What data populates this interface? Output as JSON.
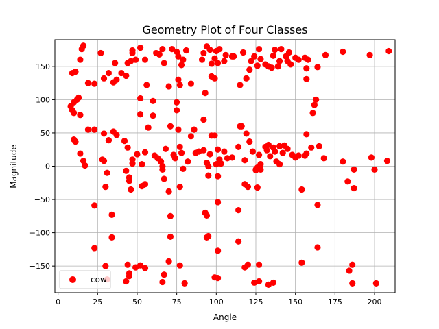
{
  "chart_data": {
    "type": "scatter",
    "title": "Geometry Plot of Four Classes",
    "xlabel": "Angle",
    "ylabel": "Magnitude",
    "xlim": [
      -2,
      213
    ],
    "ylim": [
      -190,
      190
    ],
    "xticks": [
      0,
      25,
      50,
      75,
      100,
      125,
      150,
      175,
      200
    ],
    "yticks": [
      -150,
      -100,
      -50,
      0,
      50,
      100,
      150
    ],
    "grid": true,
    "legend_position": "lower-left",
    "series": [
      {
        "name": "cow",
        "color": "#ff0000",
        "points": [
          [
            9,
            84
          ],
          [
            10,
            80
          ],
          [
            11,
            142
          ],
          [
            9,
            140
          ],
          [
            8,
            90
          ],
          [
            10,
            96
          ],
          [
            12,
            100
          ],
          [
            13,
            103
          ],
          [
            14,
            160
          ],
          [
            15,
            176
          ],
          [
            16,
            181
          ],
          [
            19,
            125
          ],
          [
            23,
            124
          ],
          [
            27,
            170
          ],
          [
            28,
            10
          ],
          [
            29,
            8
          ],
          [
            16,
            8
          ],
          [
            17,
            1
          ],
          [
            14,
            77
          ],
          [
            19,
            55
          ],
          [
            23,
            55
          ],
          [
            10,
            40
          ],
          [
            11,
            37
          ],
          [
            14,
            19
          ],
          [
            29,
            132
          ],
          [
            32,
            140
          ],
          [
            35,
            126
          ],
          [
            37,
            130
          ],
          [
            36,
            155
          ],
          [
            40,
            140
          ],
          [
            43,
            136
          ],
          [
            44,
            155
          ],
          [
            46,
            158
          ],
          [
            47,
            170
          ],
          [
            47,
            174
          ],
          [
            49,
            160
          ],
          [
            55,
            160
          ],
          [
            56,
            122
          ],
          [
            52,
            178
          ],
          [
            29,
            49
          ],
          [
            32,
            39
          ],
          [
            35,
            52
          ],
          [
            37,
            47
          ],
          [
            42,
            38
          ],
          [
            44,
            28
          ],
          [
            43,
            -7
          ],
          [
            45,
            -17
          ],
          [
            45,
            -22
          ],
          [
            46,
            -35
          ],
          [
            47,
            10
          ],
          [
            47,
            4
          ],
          [
            50,
            18
          ],
          [
            53,
            3
          ],
          [
            55,
            21
          ],
          [
            57,
            58
          ],
          [
            60,
            76
          ],
          [
            60,
            98
          ],
          [
            52,
            102
          ],
          [
            52,
            78
          ],
          [
            30,
            -31
          ],
          [
            31,
            -10
          ],
          [
            23,
            -59
          ],
          [
            23,
            -123
          ],
          [
            30,
            -150
          ],
          [
            31,
            -170
          ],
          [
            34,
            -73
          ],
          [
            34,
            -107
          ],
          [
            43,
            -173
          ],
          [
            44,
            -148
          ],
          [
            45,
            -161
          ],
          [
            45,
            -165
          ],
          [
            49,
            -152
          ],
          [
            52,
            -149
          ],
          [
            55,
            -153
          ],
          [
            53,
            -30
          ],
          [
            55,
            -27
          ],
          [
            62,
            170
          ],
          [
            64,
            168
          ],
          [
            66,
            176
          ],
          [
            67,
            155
          ],
          [
            70,
            120
          ],
          [
            72,
            176
          ],
          [
            75,
            172
          ],
          [
            76,
            165
          ],
          [
            76,
            130
          ],
          [
            77,
            122
          ],
          [
            78,
            152
          ],
          [
            79,
            160
          ],
          [
            81,
            174
          ],
          [
            84,
            124
          ],
          [
            79,
            -4
          ],
          [
            61,
            16
          ],
          [
            63,
            12
          ],
          [
            65,
            7
          ],
          [
            66,
            0
          ],
          [
            66,
            -5
          ],
          [
            67,
            -19
          ],
          [
            68,
            26
          ],
          [
            71,
            60
          ],
          [
            73,
            17
          ],
          [
            74,
            12
          ],
          [
            75,
            84
          ],
          [
            75,
            96
          ],
          [
            76,
            55
          ],
          [
            77,
            29
          ],
          [
            77,
            -31
          ],
          [
            78,
            20
          ],
          [
            82,
            7
          ],
          [
            84,
            45
          ],
          [
            86,
            55
          ],
          [
            87,
            20
          ],
          [
            89,
            22
          ],
          [
            70,
            -38
          ],
          [
            71,
            -75
          ],
          [
            71,
            -106
          ],
          [
            70,
            -143
          ],
          [
            67,
            -163
          ],
          [
            66,
            -174
          ],
          [
            77,
            -149
          ],
          [
            80,
            -176
          ],
          [
            91,
            160
          ],
          [
            92,
            170
          ],
          [
            94,
            180
          ],
          [
            96,
            175
          ],
          [
            97,
            154
          ],
          [
            97,
            135
          ],
          [
            99,
            132
          ],
          [
            99,
            162
          ],
          [
            100,
            173
          ],
          [
            101,
            155
          ],
          [
            102,
            176
          ],
          [
            105,
            158
          ],
          [
            106,
            167
          ],
          [
            110,
            165
          ],
          [
            111,
            165
          ],
          [
            115,
            122
          ],
          [
            117,
            171
          ],
          [
            119,
            132
          ],
          [
            121,
            145
          ],
          [
            122,
            158
          ],
          [
            124,
            165
          ],
          [
            126,
            151
          ],
          [
            127,
            176
          ],
          [
            128,
            161
          ],
          [
            92,
            70
          ],
          [
            92,
            24
          ],
          [
            93,
            110
          ],
          [
            94,
            5
          ],
          [
            95,
            0
          ],
          [
            96,
            18
          ],
          [
            97,
            46
          ],
          [
            99,
            46
          ],
          [
            100,
            3
          ],
          [
            101,
            25
          ],
          [
            102,
            10
          ],
          [
            103,
            4
          ],
          [
            105,
            22
          ],
          [
            107,
            12
          ],
          [
            110,
            13
          ],
          [
            114,
            29
          ],
          [
            115,
            60
          ],
          [
            116,
            60
          ],
          [
            118,
            9
          ],
          [
            119,
            49
          ],
          [
            121,
            37
          ],
          [
            123,
            22
          ],
          [
            125,
            -5
          ],
          [
            125,
            -6
          ],
          [
            126,
            -2
          ],
          [
            127,
            17
          ],
          [
            128,
            3
          ],
          [
            128,
            -5
          ],
          [
            93,
            -70
          ],
          [
            94,
            -74
          ],
          [
            94,
            -107
          ],
          [
            95,
            -105
          ],
          [
            99,
            -167
          ],
          [
            101,
            -168
          ],
          [
            101,
            -127
          ],
          [
            101,
            -54
          ],
          [
            101,
            -15
          ],
          [
            95,
            -14
          ],
          [
            114,
            -66
          ],
          [
            114,
            -113
          ],
          [
            118,
            -27
          ],
          [
            120,
            -31
          ],
          [
            118,
            -152
          ],
          [
            120,
            -148
          ],
          [
            124,
            -175
          ],
          [
            127,
            -148
          ],
          [
            127,
            -173
          ],
          [
            126,
            -32
          ],
          [
            131,
            153
          ],
          [
            133,
            150
          ],
          [
            135,
            148
          ],
          [
            136,
            166
          ],
          [
            137,
            175
          ],
          [
            139,
            150
          ],
          [
            140,
            158
          ],
          [
            141,
            176
          ],
          [
            144,
            165
          ],
          [
            145,
            158
          ],
          [
            146,
            171
          ],
          [
            147,
            153
          ],
          [
            150,
            163
          ],
          [
            152,
            160
          ],
          [
            156,
            163
          ],
          [
            157,
            147
          ],
          [
            158,
            160
          ],
          [
            157,
            131
          ],
          [
            164,
            149
          ],
          [
            169,
            167
          ],
          [
            131,
            29
          ],
          [
            132,
            24
          ],
          [
            133,
            32
          ],
          [
            134,
            15
          ],
          [
            136,
            28
          ],
          [
            137,
            22
          ],
          [
            138,
            7
          ],
          [
            140,
            30
          ],
          [
            140,
            3
          ],
          [
            142,
            20
          ],
          [
            143,
            31
          ],
          [
            145,
            26
          ],
          [
            148,
            17
          ],
          [
            150,
            13
          ],
          [
            152,
            16
          ],
          [
            156,
            16
          ],
          [
            157,
            19
          ],
          [
            157,
            48
          ],
          [
            160,
            28
          ],
          [
            161,
            80
          ],
          [
            163,
            100
          ],
          [
            162,
            92
          ],
          [
            165,
            30
          ],
          [
            168,
            12
          ],
          [
            133,
            -178
          ],
          [
            136,
            -175
          ],
          [
            154,
            -145
          ],
          [
            154,
            -35
          ],
          [
            164,
            -58
          ],
          [
            164,
            -122
          ],
          [
            180,
            172
          ],
          [
            180,
            7
          ],
          [
            183,
            -23
          ],
          [
            184,
            -157
          ],
          [
            186,
            -148
          ],
          [
            186,
            -176
          ],
          [
            187,
            -5
          ],
          [
            187,
            -33
          ],
          [
            197,
            167
          ],
          [
            198,
            13
          ],
          [
            200,
            -5
          ],
          [
            201,
            -176
          ],
          [
            209,
            173
          ],
          [
            208,
            8
          ]
        ]
      }
    ]
  }
}
